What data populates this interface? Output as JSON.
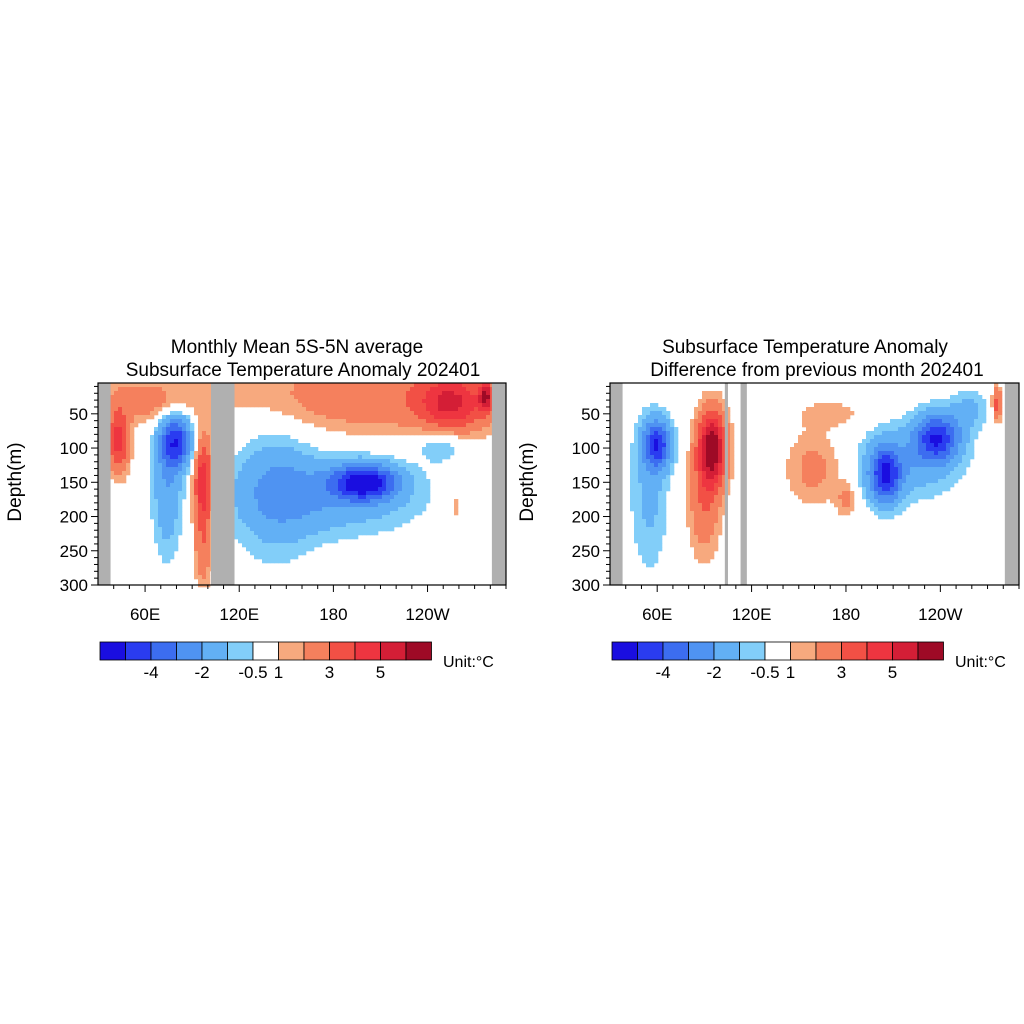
{
  "colors": {
    "land": "#b0b0b0",
    "palette": [
      "#1a0ee0",
      "#2a3cf0",
      "#3c6df0",
      "#4f93f2",
      "#62b0f5",
      "#82cef9",
      "#ffffff",
      "#f7a97e",
      "#f5805d",
      "#f25045",
      "#ee3540",
      "#d41e36",
      "#9e0a26"
    ]
  },
  "colorbar": {
    "labels": [
      "-4",
      "-2",
      "-0.5",
      "1",
      "3",
      "5"
    ],
    "unit_prefix": "Unit:",
    "unit_symbol": "°C"
  },
  "chart_data": [
    {
      "type": "heatmap",
      "title_line1": "Monthly Mean 5S-5N average",
      "title_line2": "Subsurface Temperature Anomaly 202401",
      "ylabel": "Depth(m)",
      "xlabel": "",
      "x_ticks": [
        "60E",
        "120E",
        "180",
        "120W"
      ],
      "x_tick_values": [
        60,
        120,
        180,
        240
      ],
      "xlim": [
        30,
        290
      ],
      "y_ticks": [
        "50",
        "100",
        "150",
        "200",
        "250",
        "300"
      ],
      "y_tick_values": [
        50,
        100,
        150,
        200,
        250,
        300
      ],
      "ylim": [
        300,
        5
      ],
      "levels": [
        -5,
        -4,
        -3,
        -2,
        -1,
        -0.5,
        0.5,
        1,
        2,
        3,
        4,
        5
      ],
      "land_longitudes": [
        [
          30,
          38
        ],
        [
          102,
          117
        ],
        [
          281,
          290
        ]
      ],
      "features": [
        {
          "lon": 43,
          "depth": 90,
          "value": 3.5,
          "rlon": 7,
          "rdep": 45
        },
        {
          "lon": 62,
          "depth": 30,
          "value": 1.5,
          "rlon": 28,
          "rdep": 30
        },
        {
          "lon": 80,
          "depth": 90,
          "value": -4.5,
          "rlon": 10,
          "rdep": 38
        },
        {
          "lon": 74,
          "depth": 160,
          "value": -1.8,
          "rlon": 9,
          "rdep": 95
        },
        {
          "lon": 97,
          "depth": 150,
          "value": 4.0,
          "rlon": 6,
          "rdep": 65
        },
        {
          "lon": 97,
          "depth": 250,
          "value": 1.5,
          "rlon": 6,
          "rdep": 60
        },
        {
          "lon": 210,
          "depth": 25,
          "value": 1.7,
          "rlon": 95,
          "rdep": 55
        },
        {
          "lon": 255,
          "depth": 35,
          "value": 3.2,
          "rlon": 20,
          "rdep": 40
        },
        {
          "lon": 277,
          "depth": 25,
          "value": 4.0,
          "rlon": 4,
          "rdep": 20
        },
        {
          "lon": 200,
          "depth": 150,
          "value": -5.2,
          "rlon": 20,
          "rdep": 25
        },
        {
          "lon": 178,
          "depth": 170,
          "value": -1.8,
          "rlon": 55,
          "rdep": 55
        },
        {
          "lon": 143,
          "depth": 160,
          "value": -1.5,
          "rlon": 25,
          "rdep": 100
        },
        {
          "lon": 248,
          "depth": 95,
          "value": -1.2,
          "rlon": 15,
          "rdep": 25
        },
        {
          "lon": 258,
          "depth": 185,
          "value": 1.0,
          "rlon": 3,
          "rdep": 20
        }
      ]
    },
    {
      "type": "heatmap",
      "title_line1": "Subsurface Temperature Anomaly",
      "title_line2": "Difference from previous month 202401",
      "ylabel": "Depth(m)",
      "xlabel": "",
      "x_ticks": [
        "60E",
        "120E",
        "180",
        "120W"
      ],
      "x_tick_values": [
        60,
        120,
        180,
        240
      ],
      "xlim": [
        30,
        290
      ],
      "y_ticks": [
        "50",
        "100",
        "150",
        "200",
        "250",
        "300"
      ],
      "y_tick_values": [
        50,
        100,
        150,
        200,
        250,
        300
      ],
      "ylim": [
        300,
        5
      ],
      "levels": [
        -5,
        -4,
        -3,
        -2,
        -1,
        -0.5,
        0.5,
        1,
        2,
        3,
        4,
        5
      ],
      "land_longitudes": [
        [
          30,
          38
        ],
        [
          103,
          105
        ],
        [
          113,
          117
        ],
        [
          281,
          290
        ]
      ],
      "features": [
        {
          "lon": 60,
          "depth": 95,
          "value": -4.6,
          "rlon": 9,
          "rdep": 35
        },
        {
          "lon": 55,
          "depth": 170,
          "value": -1.2,
          "rlon": 12,
          "rdep": 110
        },
        {
          "lon": 95,
          "depth": 100,
          "value": 5.6,
          "rlon": 9,
          "rdep": 55
        },
        {
          "lon": 90,
          "depth": 180,
          "value": 1.8,
          "rlon": 10,
          "rdep": 80
        },
        {
          "lon": 160,
          "depth": 130,
          "value": 1.3,
          "rlon": 18,
          "rdep": 55
        },
        {
          "lon": 170,
          "depth": 50,
          "value": 0.9,
          "rlon": 20,
          "rdep": 20
        },
        {
          "lon": 180,
          "depth": 175,
          "value": 1.2,
          "rlon": 6,
          "rdep": 25
        },
        {
          "lon": 205,
          "depth": 140,
          "value": -4.5,
          "rlon": 10,
          "rdep": 40
        },
        {
          "lon": 238,
          "depth": 85,
          "value": -4.5,
          "rlon": 14,
          "rdep": 35
        },
        {
          "lon": 220,
          "depth": 120,
          "value": -1.5,
          "rlon": 32,
          "rdep": 55
        },
        {
          "lon": 258,
          "depth": 45,
          "value": -1.2,
          "rlon": 12,
          "rdep": 30
        },
        {
          "lon": 276,
          "depth": 35,
          "value": 2.5,
          "rlon": 3,
          "rdep": 25
        }
      ]
    }
  ]
}
